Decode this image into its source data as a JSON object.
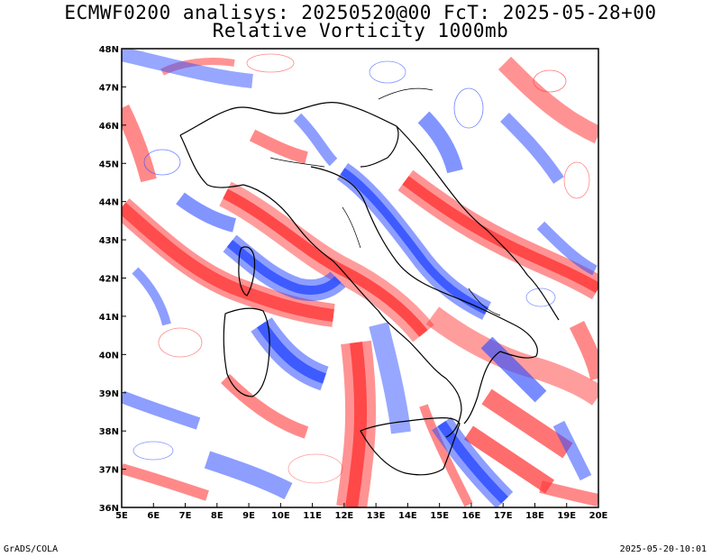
{
  "title": {
    "line1": "ECMWF0200 analisys: 20250520@00 FcT: 2025-05-28+00",
    "line2": "Relative Vorticity 1000mb"
  },
  "footer": {
    "left": "GrADS/COLA",
    "right": "2025-05-20-10:01"
  },
  "map": {
    "lon_labels": [
      "5E",
      "6E",
      "7E",
      "8E",
      "9E",
      "10E",
      "11E",
      "12E",
      "13E",
      "14E",
      "15E",
      "16E",
      "17E",
      "18E",
      "19E",
      "20E"
    ],
    "lat_labels": [
      "48N",
      "47N",
      "46N",
      "45N",
      "44N",
      "43N",
      "42N",
      "41N",
      "40N",
      "39N",
      "38N",
      "37N",
      "36N"
    ],
    "lon_range": [
      5,
      20
    ],
    "lat_range": [
      36,
      48
    ],
    "colors": {
      "positive": "#ff3b3b",
      "negative": "#2f4fff",
      "coast": "#000000"
    }
  }
}
